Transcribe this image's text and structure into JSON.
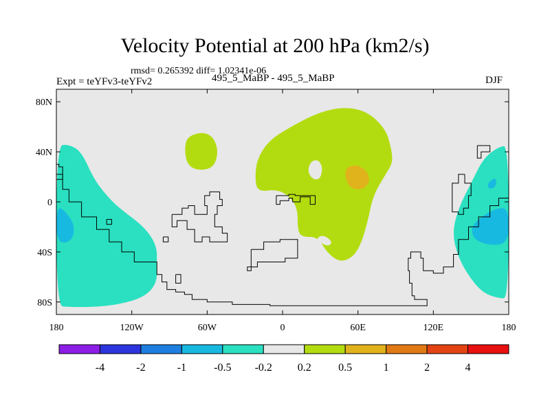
{
  "header": {
    "title": "Velocity Potential at 200 hPa (km2/s)",
    "stats": "rmsd= 0.265392 diff= 1.02341e-06",
    "experiment": "Expt = teYFv3-teYFv2",
    "period": "495_5_MaBP - 495_5_MaBP",
    "season": "DJF"
  },
  "chart_data": {
    "type": "filled-contour-map",
    "title": "Velocity Potential at 200 hPa (km2/s)",
    "xlabel": "",
    "ylabel": "",
    "xlim": [
      -180,
      180
    ],
    "ylim": [
      -90,
      90
    ],
    "x_ticks": [
      {
        "value": -180,
        "label": "180"
      },
      {
        "value": -120,
        "label": "120W"
      },
      {
        "value": -60,
        "label": "60W"
      },
      {
        "value": 0,
        "label": "0"
      },
      {
        "value": 60,
        "label": "60E"
      },
      {
        "value": 120,
        "label": "120E"
      },
      {
        "value": 180,
        "label": "180"
      }
    ],
    "y_ticks": [
      {
        "value": 80,
        "label": "80N"
      },
      {
        "value": 40,
        "label": "40N"
      },
      {
        "value": 0,
        "label": "0"
      },
      {
        "value": -40,
        "label": "40S"
      },
      {
        "value": -80,
        "label": "80S"
      }
    ],
    "colorbar": {
      "colors": [
        "#8c1ee6",
        "#2c35dd",
        "#1e7fe0",
        "#18b9e0",
        "#2ae0c0",
        "#e8e8e8",
        "#b3dc10",
        "#e0b31c",
        "#e07a14",
        "#e44414",
        "#e81010"
      ],
      "labels": [
        "-4",
        "-2",
        "-1",
        "-0.5",
        "-0.2",
        "0.2",
        "0.5",
        "1",
        "2",
        "4"
      ]
    },
    "regions": [
      {
        "level": "-0.5 to -0.2",
        "color": "#2ae0c0",
        "label": "South Pacific west",
        "points": [
          [
            -180,
            45
          ],
          [
            -170,
            46
          ],
          [
            -160,
            40
          ],
          [
            -150,
            18
          ],
          [
            -140,
            5
          ],
          [
            -130,
            -5
          ],
          [
            -110,
            -20
          ],
          [
            -100,
            -35
          ],
          [
            -100,
            -50
          ],
          [
            -100,
            -65
          ],
          [
            -110,
            -76
          ],
          [
            -130,
            -82
          ],
          [
            -150,
            -84
          ],
          [
            -170,
            -84
          ],
          [
            -180,
            -83
          ]
        ]
      },
      {
        "level": "-0.5 to -0.2",
        "color": "#2ae0c0",
        "label": "South Pacific east",
        "points": [
          [
            180,
            45
          ],
          [
            172,
            44
          ],
          [
            160,
            35
          ],
          [
            150,
            15
          ],
          [
            140,
            -5
          ],
          [
            135,
            -25
          ],
          [
            140,
            -45
          ],
          [
            150,
            -62
          ],
          [
            160,
            -73
          ],
          [
            172,
            -77
          ],
          [
            180,
            -77
          ]
        ]
      },
      {
        "level": "-1 to -0.5",
        "color": "#18b9e0",
        "label": "core west",
        "points": [
          [
            -180,
            -3
          ],
          [
            -172,
            -8
          ],
          [
            -165,
            -20
          ],
          [
            -168,
            -32
          ],
          [
            -180,
            -33
          ]
        ]
      },
      {
        "level": "-1 to -0.5",
        "color": "#18b9e0",
        "label": "core east",
        "points": [
          [
            180,
            -5
          ],
          [
            170,
            -5
          ],
          [
            158,
            -12
          ],
          [
            150,
            -20
          ],
          [
            152,
            -30
          ],
          [
            165,
            -35
          ],
          [
            180,
            -33
          ]
        ]
      },
      {
        "level": "-1 to -0.5",
        "color": "#18b9e0",
        "label": "core east small",
        "points": [
          [
            163,
            15
          ],
          [
            170,
            20
          ],
          [
            170,
            12
          ],
          [
            164,
            10
          ]
        ]
      },
      {
        "level": "0.2 to 0.5",
        "color": "#b3dc10",
        "label": "North Atlantic blob",
        "points": [
          [
            -76,
            52
          ],
          [
            -64,
            56
          ],
          [
            -55,
            52
          ],
          [
            -51,
            40
          ],
          [
            -55,
            27
          ],
          [
            -68,
            25
          ],
          [
            -76,
            30
          ],
          [
            -78,
            42
          ]
        ]
      },
      {
        "level": "0.2 to 0.5",
        "color": "#b3dc10",
        "label": "Africa-Asia",
        "points": [
          [
            -20,
            35
          ],
          [
            -10,
            50
          ],
          [
            10,
            62
          ],
          [
            30,
            72
          ],
          [
            50,
            76
          ],
          [
            68,
            72
          ],
          [
            82,
            58
          ],
          [
            86,
            45
          ],
          [
            88,
            32
          ],
          [
            82,
            22
          ],
          [
            72,
            5
          ],
          [
            68,
            -15
          ],
          [
            62,
            -35
          ],
          [
            55,
            -45
          ],
          [
            45,
            -48
          ],
          [
            35,
            -40
          ],
          [
            28,
            -28
          ],
          [
            15,
            -28
          ],
          [
            12,
            -22
          ],
          [
            12,
            -5
          ],
          [
            5,
            5
          ],
          [
            -5,
            10
          ],
          [
            -20,
            8
          ],
          [
            -22,
            20
          ]
        ]
      },
      {
        "level": "0.5 to 1",
        "color": "#e0b31c",
        "label": "Asia core",
        "points": [
          [
            50,
            27
          ],
          [
            58,
            30
          ],
          [
            66,
            26
          ],
          [
            70,
            18
          ],
          [
            65,
            10
          ],
          [
            55,
            10
          ],
          [
            50,
            18
          ]
        ]
      },
      {
        "level": "-0.2 to 0.2",
        "color": "#e8e8e8",
        "label": "hole",
        "points": [
          [
            22,
            32
          ],
          [
            28,
            34
          ],
          [
            32,
            28
          ],
          [
            30,
            18
          ],
          [
            24,
            18
          ],
          [
            20,
            24
          ]
        ]
      },
      {
        "level": "-0.2 to 0.2",
        "color": "#e8e8e8",
        "label": "notch",
        "points": [
          [
            26,
            -30
          ],
          [
            32,
            -26
          ],
          [
            40,
            -32
          ],
          [
            36,
            -36
          ]
        ]
      }
    ],
    "coastlines": [
      [
        [
          -180,
          30
        ],
        [
          -178,
          28
        ],
        [
          -175,
          10
        ],
        [
          -170,
          0
        ],
        [
          -160,
          -12
        ],
        [
          -148,
          -22
        ],
        [
          -138,
          -32
        ],
        [
          -128,
          -40
        ],
        [
          -118,
          -48
        ],
        [
          -100,
          -58
        ],
        [
          -96,
          -64
        ],
        [
          -92,
          -70
        ],
        [
          -85,
          -72
        ],
        [
          -78,
          -74
        ],
        [
          -72,
          -78
        ],
        [
          -60,
          -80
        ],
        [
          -40,
          -82
        ],
        [
          -10,
          -83
        ],
        [
          20,
          -83
        ],
        [
          60,
          -83
        ],
        [
          100,
          -83
        ],
        [
          115,
          -83
        ],
        [
          115,
          -78
        ],
        [
          105,
          -75
        ],
        [
          103,
          -65
        ],
        [
          101,
          -55
        ],
        [
          100,
          -45
        ],
        [
          102,
          -40
        ],
        [
          108,
          -40
        ],
        [
          110,
          -45
        ],
        [
          112,
          -55
        ],
        [
          120,
          -57
        ],
        [
          128,
          -52
        ],
        [
          136,
          -42
        ],
        [
          140,
          -30
        ],
        [
          148,
          -20
        ],
        [
          156,
          -12
        ],
        [
          165,
          -3
        ],
        [
          172,
          3
        ],
        [
          180,
          5
        ]
      ],
      [
        [
          -140,
          -14
        ],
        [
          -136,
          -14
        ],
        [
          -136,
          -18
        ],
        [
          -140,
          -18
        ],
        [
          -140,
          -14
        ]
      ],
      [
        [
          -95,
          -28
        ],
        [
          -91,
          -28
        ],
        [
          -91,
          -32
        ],
        [
          -95,
          -32
        ],
        [
          -95,
          -28
        ]
      ],
      [
        [
          -85,
          -58
        ],
        [
          -81,
          -58
        ],
        [
          -81,
          -65
        ],
        [
          -85,
          -65
        ],
        [
          -85,
          -58
        ]
      ],
      [
        [
          -88,
          -10
        ],
        [
          -80,
          -5
        ],
        [
          -75,
          -3
        ],
        [
          -70,
          -10
        ],
        [
          -64,
          -10
        ],
        [
          -60,
          -3
        ],
        [
          -62,
          5
        ],
        [
          -58,
          8
        ],
        [
          -50,
          2
        ],
        [
          -48,
          -3
        ],
        [
          -52,
          -10
        ],
        [
          -54,
          -20
        ],
        [
          -48,
          -25
        ],
        [
          -44,
          -32
        ],
        [
          -52,
          -32
        ],
        [
          -58,
          -28
        ],
        [
          -64,
          -32
        ],
        [
          -70,
          -22
        ],
        [
          -76,
          -15
        ],
        [
          -84,
          -20
        ],
        [
          -88,
          -10
        ]
      ],
      [
        [
          -5,
          5
        ],
        [
          -5,
          -2
        ],
        [
          -2,
          -2
        ],
        [
          -2,
          1
        ],
        [
          5,
          3
        ],
        [
          8,
          0
        ],
        [
          12,
          0
        ],
        [
          14,
          4
        ],
        [
          22,
          -2
        ],
        [
          26,
          2
        ],
        [
          26,
          5
        ],
        [
          10,
          6
        ],
        [
          5,
          5
        ],
        [
          -5,
          5
        ]
      ],
      [
        [
          -25,
          -38
        ],
        [
          -15,
          -32
        ],
        [
          -2,
          -30
        ],
        [
          12,
          -32
        ],
        [
          12,
          -45
        ],
        [
          2,
          -48
        ],
        [
          -10,
          -48
        ],
        [
          -20,
          -52
        ],
        [
          -28,
          -55
        ],
        [
          -25,
          -48
        ],
        [
          -25,
          -38
        ]
      ],
      [
        [
          155,
          45
        ],
        [
          165,
          45
        ],
        [
          165,
          40
        ],
        [
          158,
          40
        ],
        [
          158,
          35
        ],
        [
          155,
          35
        ],
        [
          155,
          45
        ]
      ],
      [
        [
          -180,
          22
        ],
        [
          -175,
          22
        ],
        [
          -175,
          18
        ],
        [
          -180,
          18
        ]
      ],
      [
        [
          145,
          22
        ],
        [
          140,
          15
        ],
        [
          135,
          5
        ],
        [
          135,
          -8
        ],
        [
          140,
          -10
        ],
        [
          144,
          -5
        ],
        [
          148,
          5
        ],
        [
          150,
          15
        ],
        [
          145,
          22
        ]
      ]
    ]
  }
}
